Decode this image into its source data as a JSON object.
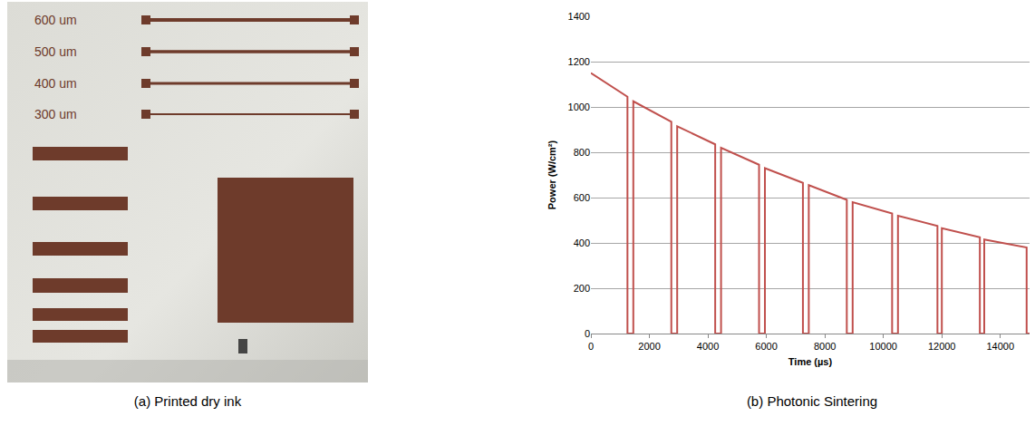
{
  "photo": {
    "labels": [
      "600 um",
      "500 um",
      "400 um",
      "300 um"
    ]
  },
  "captions": [
    "(a) Printed dry ink",
    "(b) Photonic Sintering"
  ],
  "chart_data": {
    "type": "line",
    "x_label": "Time (µs)",
    "y_label": "Power (W/cm²)",
    "x": [
      0,
      1250,
      1250,
      1450,
      1450,
      2750,
      2750,
      2950,
      2950,
      4250,
      4250,
      4450,
      4450,
      5750,
      5750,
      5950,
      5950,
      7250,
      7250,
      7450,
      7450,
      8750,
      8750,
      8950,
      8950,
      10300,
      10300,
      10500,
      10500,
      11850,
      11850,
      12000,
      12000,
      13300,
      13300,
      13450,
      13450,
      14900,
      14900,
      15000
    ],
    "values": [
      1150,
      1045,
      0,
      0,
      1025,
      935,
      0,
      0,
      915,
      835,
      0,
      0,
      820,
      745,
      0,
      0,
      730,
      665,
      0,
      0,
      655,
      590,
      0,
      0,
      580,
      530,
      0,
      0,
      520,
      475,
      0,
      0,
      465,
      425,
      0,
      0,
      415,
      380,
      0,
      0
    ],
    "color": "#c0504d",
    "xlim": [
      0,
      15000
    ],
    "xticks": [
      0,
      2000,
      4000,
      6000,
      8000,
      10000,
      12000,
      14000
    ],
    "ylim": [
      0,
      1400
    ],
    "yticks": [
      0,
      200,
      400,
      600,
      800,
      1000,
      1200,
      1400
    ],
    "grid": true
  }
}
